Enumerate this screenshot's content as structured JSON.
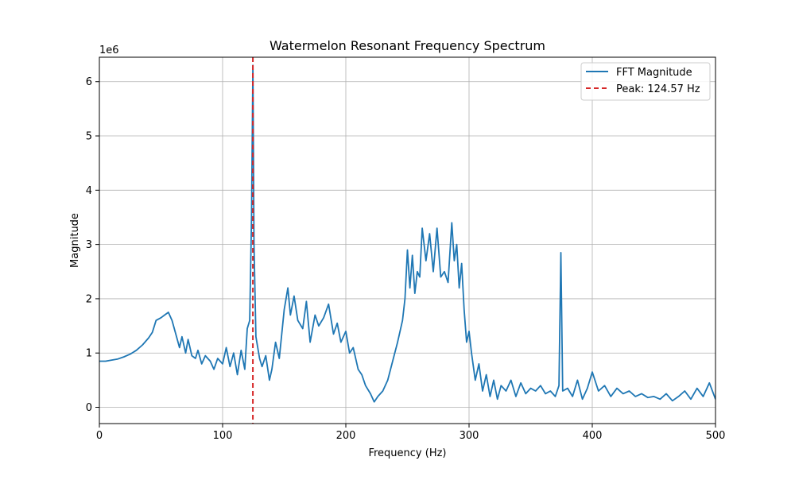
{
  "chart_data": {
    "type": "line",
    "title": "Watermelon Resonant Frequency Spectrum",
    "xlabel": "Frequency (Hz)",
    "ylabel": "Magnitude",
    "y_offset_label": "1e6",
    "y_scale": 1000000,
    "xlim": [
      0,
      500
    ],
    "ylim": [
      -300000,
      6450000
    ],
    "x_ticks": [
      0,
      100,
      200,
      300,
      400,
      500
    ],
    "x_tick_labels": [
      "0",
      "100",
      "200",
      "300",
      "400",
      "500"
    ],
    "y_ticks": [
      0,
      1000000,
      2000000,
      3000000,
      4000000,
      5000000,
      6000000
    ],
    "y_tick_labels": [
      "0",
      "1",
      "2",
      "3",
      "4",
      "5",
      "6"
    ],
    "grid": true,
    "legend_position": "top-right",
    "colors": {
      "series": "#1f77b4",
      "peak": "#d62728"
    },
    "series": [
      {
        "name": "FFT Magnitude",
        "style": "solid",
        "x": [
          0,
          5,
          10,
          15,
          20,
          25,
          30,
          35,
          40,
          43,
          46,
          50,
          53,
          56,
          59,
          62,
          65,
          67,
          70,
          72,
          75,
          78,
          80,
          83,
          86,
          90,
          93,
          96,
          100,
          103,
          106,
          109,
          112,
          115,
          118,
          120,
          122,
          123.5,
          124.57,
          125.5,
          127,
          130,
          132,
          135,
          138,
          140,
          143,
          146,
          150,
          153,
          155,
          158,
          161,
          165,
          168,
          171,
          175,
          178,
          182,
          186,
          190,
          193,
          196,
          200,
          203,
          206,
          210,
          213,
          216,
          220,
          223,
          226,
          230,
          234,
          238,
          242,
          246,
          248,
          250,
          252,
          254,
          256,
          258,
          260,
          262,
          265,
          268,
          271,
          274,
          277,
          280,
          283,
          286,
          288,
          290,
          292,
          294,
          296,
          298,
          300,
          302,
          305,
          308,
          311,
          314,
          317,
          320,
          323,
          326,
          330,
          334,
          338,
          342,
          346,
          350,
          354,
          358,
          362,
          366,
          370,
          373,
          374.5,
          376,
          380,
          384,
          388,
          392,
          396,
          400,
          405,
          410,
          415,
          420,
          425,
          430,
          435,
          440,
          445,
          450,
          455,
          460,
          465,
          470,
          475,
          480,
          485,
          490,
          495,
          500
        ],
        "y": [
          850000,
          850000,
          870000,
          890000,
          930000,
          980000,
          1050000,
          1150000,
          1280000,
          1380000,
          1600000,
          1650000,
          1700000,
          1750000,
          1600000,
          1350000,
          1100000,
          1300000,
          1000000,
          1250000,
          950000,
          900000,
          1050000,
          800000,
          950000,
          850000,
          700000,
          900000,
          800000,
          1100000,
          750000,
          1000000,
          600000,
          1050000,
          700000,
          1450000,
          1600000,
          3500000,
          6300000,
          3000000,
          1300000,
          900000,
          750000,
          950000,
          500000,
          700000,
          1200000,
          900000,
          1800000,
          2200000,
          1700000,
          2050000,
          1600000,
          1450000,
          1950000,
          1200000,
          1700000,
          1500000,
          1650000,
          1900000,
          1350000,
          1550000,
          1200000,
          1400000,
          1000000,
          1100000,
          700000,
          600000,
          400000,
          250000,
          100000,
          200000,
          300000,
          500000,
          850000,
          1200000,
          1600000,
          2000000,
          2900000,
          2200000,
          2800000,
          2100000,
          2500000,
          2400000,
          3300000,
          2700000,
          3200000,
          2500000,
          3300000,
          2400000,
          2500000,
          2300000,
          3400000,
          2700000,
          3000000,
          2200000,
          2650000,
          1800000,
          1200000,
          1400000,
          1000000,
          500000,
          800000,
          300000,
          600000,
          200000,
          500000,
          150000,
          400000,
          300000,
          500000,
          200000,
          450000,
          250000,
          350000,
          300000,
          400000,
          250000,
          300000,
          200000,
          400000,
          2850000,
          300000,
          350000,
          200000,
          500000,
          150000,
          350000,
          650000,
          300000,
          400000,
          200000,
          350000,
          250000,
          300000,
          200000,
          250000,
          180000,
          200000,
          150000,
          250000,
          120000,
          200000,
          300000,
          150000,
          350000,
          200000,
          450000,
          150000
        ]
      }
    ],
    "peak_line": {
      "name": "Peak: 124.57 Hz",
      "x": 124.57,
      "style": "dashed"
    }
  }
}
